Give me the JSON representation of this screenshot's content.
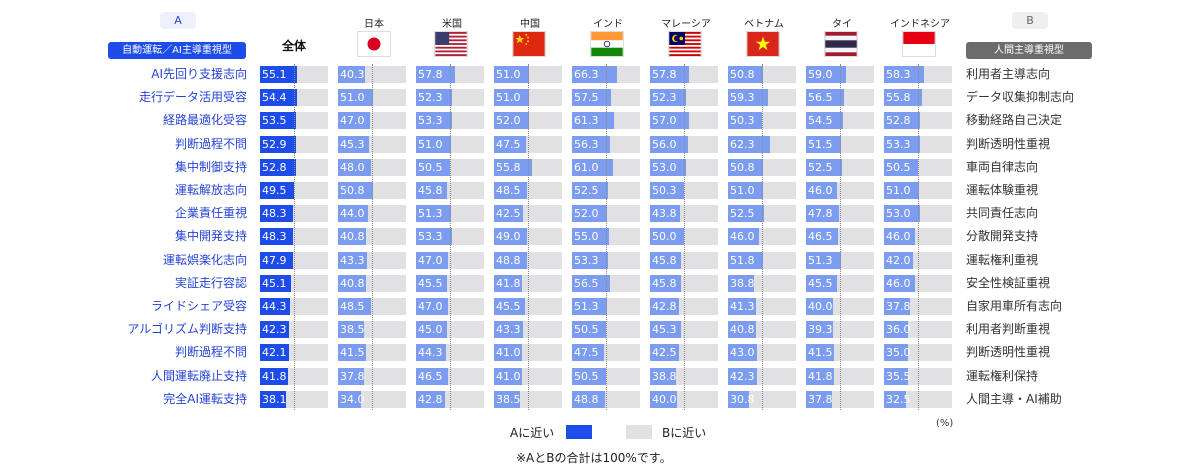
{
  "header": {
    "a_letter": "A",
    "b_letter": "B",
    "a_badge": "自動運転／AI主導重視型",
    "b_badge": "人間主導重視型",
    "overall_label": "全体"
  },
  "chart_data": {
    "type": "bar",
    "columns": [
      "全体",
      "日本",
      "米国",
      "中国",
      "インド",
      "マレーシア",
      "ベトナム",
      "タイ",
      "インドネシア"
    ],
    "rows_a": [
      "AI先回り支援志向",
      "走行データ活用受容",
      "経路最適化受容",
      "判断過程不問",
      "集中制御支持",
      "運転解放志向",
      "企業責任重視",
      "集中開発支持",
      "運転娯楽化志向",
      "実証走行容認",
      "ライドシェア受容",
      "アルゴリズム判断支持",
      "判断過程不問",
      "人間運転廃止支持",
      "完全AI運転支持"
    ],
    "rows_b": [
      "利用者主導志向",
      "データ収集抑制志向",
      "移動経路自己決定",
      "判断透明性重視",
      "車両自律志向",
      "運転体験重視",
      "共同責任志向",
      "分散開発支持",
      "運転権利重視",
      "安全性検証重視",
      "自家用車所有志向",
      "利用者判断重視",
      "判断透明性重視",
      "運転権利保持",
      "人間主導・AI補助"
    ],
    "values": [
      [
        55.1,
        40.3,
        57.8,
        51.0,
        66.3,
        57.8,
        50.8,
        59.0,
        58.3
      ],
      [
        54.4,
        51.0,
        52.3,
        51.0,
        57.5,
        52.3,
        59.3,
        56.5,
        55.8
      ],
      [
        53.5,
        47.0,
        53.3,
        52.0,
        61.3,
        57.0,
        50.3,
        54.5,
        52.8
      ],
      [
        52.9,
        45.3,
        51.0,
        47.5,
        56.3,
        56.0,
        62.3,
        51.5,
        53.3
      ],
      [
        52.8,
        48.0,
        50.5,
        55.8,
        61.0,
        53.0,
        50.8,
        52.5,
        50.5
      ],
      [
        49.5,
        50.8,
        45.8,
        48.5,
        52.5,
        50.3,
        51.0,
        46.0,
        51.0
      ],
      [
        48.3,
        44.0,
        51.3,
        42.5,
        52.0,
        43.8,
        52.5,
        47.8,
        53.0
      ],
      [
        48.3,
        40.8,
        53.3,
        49.0,
        55.0,
        50.0,
        46.0,
        46.5,
        46.0
      ],
      [
        47.9,
        43.3,
        47.0,
        48.8,
        53.3,
        45.8,
        51.8,
        51.3,
        42.0
      ],
      [
        45.1,
        40.8,
        45.5,
        41.8,
        56.5,
        45.8,
        38.8,
        45.5,
        46.0
      ],
      [
        44.3,
        48.5,
        47.0,
        45.5,
        51.3,
        42.8,
        41.3,
        40.0,
        37.8
      ],
      [
        42.3,
        38.5,
        45.0,
        43.3,
        50.5,
        45.3,
        40.8,
        39.3,
        36.0
      ],
      [
        42.1,
        41.5,
        44.3,
        41.0,
        47.5,
        42.5,
        43.0,
        41.5,
        35.0
      ],
      [
        41.8,
        37.8,
        46.5,
        41.0,
        50.5,
        38.8,
        42.3,
        41.8,
        35.5
      ],
      [
        38.1,
        34.0,
        42.8,
        38.5,
        48.8,
        40.0,
        30.8,
        37.8,
        32.5
      ]
    ],
    "xlim": [
      0,
      100
    ],
    "unit": "(%)",
    "colors": {
      "overall": "#1e4ce8",
      "country": "#7c9cf0",
      "rest": "#e1e1e3"
    }
  },
  "legend": {
    "a_label": "Aに近い",
    "b_label": "Bに近い"
  },
  "footnote": "※AとBの合計は100%です。"
}
